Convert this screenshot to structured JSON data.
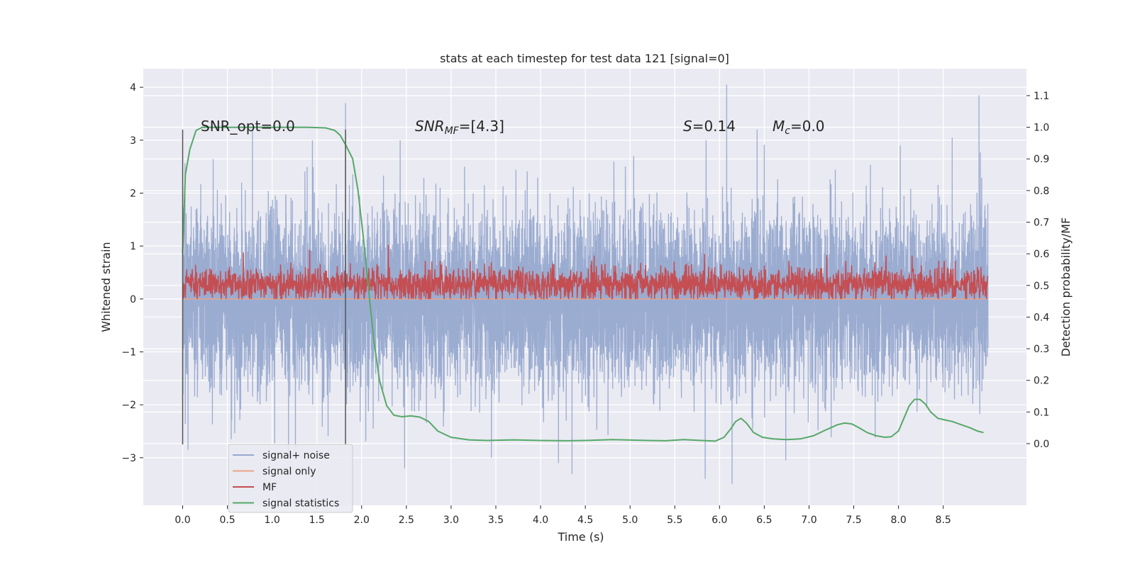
{
  "chart_data": {
    "type": "line",
    "title": "stats at each timestep for test data 121 [signal=0]",
    "xlabel": "Time (s)",
    "ylabel": "Whitened strain",
    "y2label": "Detection probability/MF",
    "xlim": [
      -0.44,
      9.43
    ],
    "ylim": [
      -3.9,
      4.35
    ],
    "y2lim": [
      -0.195,
      1.185
    ],
    "xticks": [
      "0.0",
      "0.5",
      "1.0",
      "1.5",
      "2.0",
      "2.5",
      "3.0",
      "3.5",
      "4.0",
      "4.5",
      "5.0",
      "5.5",
      "6.0",
      "6.5",
      "7.0",
      "7.5",
      "8.0",
      "8.5"
    ],
    "yticks": [
      "4",
      "3",
      "2",
      "1",
      "0",
      "−1",
      "−2",
      "−3"
    ],
    "y2ticks": [
      "1.1",
      "1.0",
      "0.9",
      "0.8",
      "0.7",
      "0.6",
      "0.5",
      "0.4",
      "0.3",
      "0.2",
      "0.1",
      "0.0"
    ],
    "annotations": {
      "snr_opt": "SNR_opt=0.0",
      "snr_mf_main": "SNR",
      "snr_mf_sub": "MF",
      "snr_mf_val": "=[4.3]",
      "s_main": "S",
      "s_val": "=0.14",
      "mc_main": "M",
      "mc_sub": "c",
      "mc_val": "=0.0"
    },
    "vlines": [
      {
        "x": 0.0,
        "ymin": -2.75,
        "ymax": 3.2
      },
      {
        "x": 1.82,
        "ymin": -2.75,
        "ymax": 3.2
      }
    ],
    "series": [
      {
        "name": "signal+ noise",
        "color": "#97a9cf",
        "axis": "left",
        "kind": "noise",
        "x_range": [
          0,
          9.0
        ],
        "std": 1.0,
        "spikes": [
          [
            6.08,
            4.05
          ],
          [
            8.9,
            3.85
          ],
          [
            1.82,
            3.7
          ],
          [
            6.14,
            -3.5
          ],
          [
            5.84,
            -3.4
          ],
          [
            2.43,
            -3.55
          ],
          [
            2.48,
            -3.2
          ],
          [
            3.45,
            -3.0
          ],
          [
            6.74,
            -3.05
          ],
          [
            4.2,
            -3.1
          ],
          [
            0.06,
            -2.85
          ],
          [
            1.26,
            -2.8
          ],
          [
            0.78,
            3.2
          ],
          [
            1.45,
            3.0
          ],
          [
            2.43,
            3.0
          ],
          [
            5.85,
            3.0
          ],
          [
            6.42,
            3.2
          ],
          [
            8.02,
            2.9
          ],
          [
            8.6,
            3.05
          ],
          [
            3.15,
            2.5
          ],
          [
            4.82,
            2.6
          ]
        ]
      },
      {
        "name": "signal only",
        "color": "#e9a488",
        "axis": "left",
        "kind": "flat",
        "x_range": [
          0,
          9.0
        ],
        "y": 0.0
      },
      {
        "name": "MF",
        "color": "#c44e52",
        "axis": "left",
        "kind": "mf",
        "x_range": [
          0,
          9.0
        ],
        "base": 0.0,
        "mean": 0.28,
        "spikes": [
          [
            2.3,
            1.02
          ],
          [
            0.68,
            0.88
          ],
          [
            1.42,
            0.93
          ],
          [
            5.83,
            0.85
          ],
          [
            4.6,
            0.82
          ],
          [
            7.2,
            0.83
          ],
          [
            7.86,
            0.82
          ],
          [
            8.15,
            0.82
          ]
        ]
      },
      {
        "name": "signal statistics",
        "color": "#55a868",
        "axis": "right",
        "kind": "line",
        "x": [
          0.0,
          0.03,
          0.08,
          0.15,
          0.22,
          0.35,
          0.6,
          1.0,
          1.4,
          1.6,
          1.7,
          1.76,
          1.82,
          1.9,
          1.96,
          2.02,
          2.08,
          2.14,
          2.2,
          2.28,
          2.36,
          2.45,
          2.55,
          2.65,
          2.75,
          2.85,
          3.0,
          3.2,
          3.4,
          3.7,
          4.0,
          4.3,
          4.5,
          4.8,
          5.2,
          5.4,
          5.6,
          5.8,
          5.95,
          6.05,
          6.12,
          6.18,
          6.24,
          6.3,
          6.38,
          6.48,
          6.6,
          6.75,
          6.9,
          7.05,
          7.2,
          7.32,
          7.4,
          7.48,
          7.56,
          7.65,
          7.75,
          7.85,
          7.92,
          8.0,
          8.06,
          8.12,
          8.18,
          8.24,
          8.3,
          8.36,
          8.44,
          8.52,
          8.6,
          8.7,
          8.8,
          8.88,
          8.95
        ],
        "y": [
          0.6,
          0.85,
          0.93,
          0.99,
          1.0,
          1.0,
          1.0,
          1.0,
          1.0,
          0.998,
          0.99,
          0.975,
          0.945,
          0.9,
          0.8,
          0.65,
          0.48,
          0.32,
          0.2,
          0.12,
          0.09,
          0.085,
          0.088,
          0.084,
          0.07,
          0.04,
          0.02,
          0.012,
          0.01,
          0.012,
          0.01,
          0.009,
          0.01,
          0.013,
          0.01,
          0.009,
          0.013,
          0.01,
          0.008,
          0.02,
          0.045,
          0.07,
          0.08,
          0.065,
          0.035,
          0.02,
          0.015,
          0.013,
          0.015,
          0.025,
          0.045,
          0.06,
          0.065,
          0.062,
          0.05,
          0.035,
          0.025,
          0.02,
          0.022,
          0.04,
          0.08,
          0.12,
          0.14,
          0.14,
          0.125,
          0.1,
          0.08,
          0.075,
          0.07,
          0.06,
          0.05,
          0.04,
          0.035
        ]
      }
    ],
    "legend": {
      "location": "lower-left",
      "entries": [
        {
          "label": "signal+ noise",
          "color": "#97a9cf"
        },
        {
          "label": "signal only",
          "color": "#e9a488"
        },
        {
          "label": "MF",
          "color": "#c44e52"
        },
        {
          "label": "signal statistics",
          "color": "#55a868"
        }
      ]
    },
    "background": "#eaeaf2",
    "grid": true
  }
}
